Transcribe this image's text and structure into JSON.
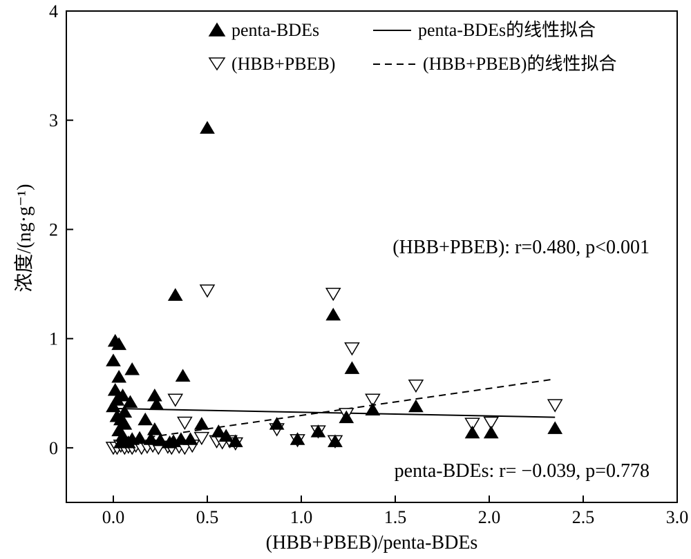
{
  "chart_data": {
    "type": "scatter",
    "xlabel": "(HBB+PBEB)/penta-BDEs",
    "ylabel": "浓度/(ng·g⁻¹)",
    "xlim": [
      -0.25,
      3.0
    ],
    "ylim": [
      -0.5,
      4.0
    ],
    "x_ticks": [
      "0.0",
      "0.5",
      "1.0",
      "1.5",
      "2.0",
      "2.5",
      "3.0"
    ],
    "y_ticks": [
      "0",
      "1",
      "2",
      "3",
      "4"
    ],
    "grid": false,
    "legend_position": "top-right",
    "legend": {
      "penta": "penta-BDEs",
      "hbb": "(HBB+PBEB)",
      "penta_fit": "penta-BDEs的线性拟合",
      "hbb_fit": "(HBB+PBEB)的线性拟合"
    },
    "annotations": {
      "hbb_stats": "(HBB+PBEB): r=0.480, p<0.001",
      "penta_stats": "penta-BDEs: r= −0.039, p=0.778"
    },
    "series": [
      {
        "name": "penta-BDEs",
        "marker": "filled-triangle-up",
        "color": "#000000",
        "points": [
          [
            0.01,
            0.98
          ],
          [
            0.03,
            0.95
          ],
          [
            0.0,
            0.8
          ],
          [
            0.1,
            0.72
          ],
          [
            0.03,
            0.65
          ],
          [
            0.01,
            0.53
          ],
          [
            0.05,
            0.48
          ],
          [
            0.22,
            0.48
          ],
          [
            0.02,
            0.44
          ],
          [
            0.09,
            0.42
          ],
          [
            0.0,
            0.38
          ],
          [
            0.23,
            0.4
          ],
          [
            0.06,
            0.33
          ],
          [
            0.02,
            0.29
          ],
          [
            0.04,
            0.26
          ],
          [
            0.17,
            0.26
          ],
          [
            0.06,
            0.22
          ],
          [
            0.03,
            0.16
          ],
          [
            0.22,
            0.17
          ],
          [
            0.05,
            0.11
          ],
          [
            0.1,
            0.08
          ],
          [
            0.14,
            0.09
          ],
          [
            0.2,
            0.08
          ],
          [
            0.25,
            0.07
          ],
          [
            0.3,
            0.05
          ],
          [
            0.32,
            0.06
          ],
          [
            0.36,
            0.08
          ],
          [
            0.41,
            0.08
          ],
          [
            0.08,
            0.05
          ],
          [
            0.04,
            0.05
          ],
          [
            0.33,
            1.4
          ],
          [
            0.37,
            0.66
          ],
          [
            0.5,
            2.93
          ],
          [
            0.47,
            0.22
          ],
          [
            0.56,
            0.15
          ],
          [
            0.6,
            0.11
          ],
          [
            0.65,
            0.06
          ],
          [
            0.87,
            0.22
          ],
          [
            0.98,
            0.08
          ],
          [
            1.09,
            0.15
          ],
          [
            1.17,
            1.22
          ],
          [
            1.18,
            0.06
          ],
          [
            1.24,
            0.28
          ],
          [
            1.27,
            0.73
          ],
          [
            1.38,
            0.35
          ],
          [
            1.61,
            0.38
          ],
          [
            1.91,
            0.14
          ],
          [
            2.01,
            0.14
          ],
          [
            2.35,
            0.18
          ]
        ]
      },
      {
        "name": "(HBB+PBEB)",
        "marker": "open-triangle-down",
        "color": "#000000",
        "points": [
          [
            0.0,
            0.0
          ],
          [
            0.02,
            0.0
          ],
          [
            0.04,
            0.02
          ],
          [
            0.06,
            0.0
          ],
          [
            0.08,
            0.01
          ],
          [
            0.1,
            0.0
          ],
          [
            0.12,
            0.02
          ],
          [
            0.15,
            0.0
          ],
          [
            0.18,
            0.01
          ],
          [
            0.21,
            0.02
          ],
          [
            0.24,
            0.0
          ],
          [
            0.29,
            0.01
          ],
          [
            0.31,
            0.0
          ],
          [
            0.35,
            0.01
          ],
          [
            0.38,
            0.0
          ],
          [
            0.42,
            0.02
          ],
          [
            0.47,
            0.09
          ],
          [
            0.55,
            0.06
          ],
          [
            0.58,
            0.05
          ],
          [
            0.62,
            0.06
          ],
          [
            0.65,
            0.04
          ],
          [
            0.33,
            0.44
          ],
          [
            0.38,
            0.23
          ],
          [
            0.5,
            1.44
          ],
          [
            0.87,
            0.17
          ],
          [
            0.98,
            0.07
          ],
          [
            1.09,
            0.15
          ],
          [
            1.17,
            1.41
          ],
          [
            1.18,
            0.06
          ],
          [
            1.24,
            0.31
          ],
          [
            1.27,
            0.91
          ],
          [
            1.38,
            0.44
          ],
          [
            1.61,
            0.57
          ],
          [
            1.91,
            0.22
          ],
          [
            2.01,
            0.23
          ],
          [
            2.35,
            0.39
          ]
        ]
      }
    ],
    "fits": [
      {
        "name": "penta-BDEs的线性拟合",
        "style": "solid",
        "x": [
          0.0,
          2.35
        ],
        "y": [
          0.36,
          0.28
        ]
      },
      {
        "name": "(HBB+PBEB)的线性拟合",
        "style": "dashed",
        "x": [
          0.0,
          2.35
        ],
        "y": [
          0.05,
          0.63
        ]
      }
    ]
  }
}
